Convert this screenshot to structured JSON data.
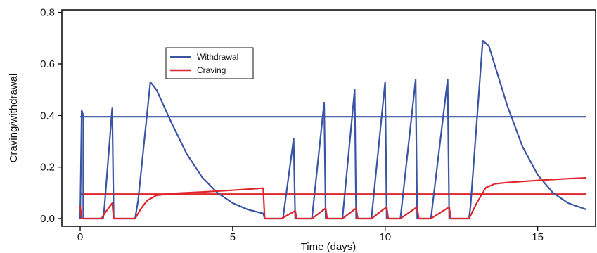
{
  "chart_data": {
    "type": "line",
    "title": "",
    "xlabel": "Time (days)",
    "ylabel": "Craving/withdrawal",
    "xlim": [
      -0.6,
      16.9
    ],
    "ylim": [
      -0.03,
      0.81
    ],
    "xticks": [
      0,
      5,
      10,
      15
    ],
    "yticks": [
      0.0,
      0.2,
      0.4,
      0.6,
      0.8
    ],
    "xtick_labels": [
      "0",
      "5",
      "10",
      "15"
    ],
    "ytick_labels": [
      "0.0",
      "0.2",
      "0.4",
      "0.6",
      "0.8"
    ],
    "grid": false,
    "legend": {
      "position": "upper-left-center"
    },
    "series": [
      {
        "name": "Withdrawal",
        "color": "#3a54a4",
        "points": [
          [
            0.0,
            0.0
          ],
          [
            0.05,
            0.42
          ],
          [
            0.1,
            0.4
          ],
          [
            0.1,
            0.0
          ],
          [
            0.75,
            0.0
          ],
          [
            0.8,
            0.05
          ],
          [
            1.05,
            0.43
          ],
          [
            1.1,
            0.0
          ],
          [
            1.8,
            0.0
          ],
          [
            1.9,
            0.07
          ],
          [
            2.3,
            0.53
          ],
          [
            2.5,
            0.5
          ],
          [
            3.0,
            0.37
          ],
          [
            3.5,
            0.25
          ],
          [
            4.0,
            0.16
          ],
          [
            4.5,
            0.1
          ],
          [
            5.0,
            0.06
          ],
          [
            5.5,
            0.035
          ],
          [
            6.0,
            0.02
          ],
          [
            6.05,
            0.0
          ],
          [
            6.65,
            0.0
          ],
          [
            7.0,
            0.31
          ],
          [
            7.05,
            0.0
          ],
          [
            7.6,
            0.0
          ],
          [
            8.0,
            0.45
          ],
          [
            8.05,
            0.0
          ],
          [
            8.6,
            0.0
          ],
          [
            9.0,
            0.5
          ],
          [
            9.05,
            0.0
          ],
          [
            9.55,
            0.0
          ],
          [
            10.0,
            0.53
          ],
          [
            10.05,
            0.0
          ],
          [
            10.5,
            0.0
          ],
          [
            11.0,
            0.54
          ],
          [
            11.05,
            0.0
          ],
          [
            11.5,
            0.0
          ],
          [
            12.05,
            0.54
          ],
          [
            12.1,
            0.0
          ],
          [
            12.75,
            0.0
          ],
          [
            12.8,
            0.05
          ],
          [
            13.2,
            0.69
          ],
          [
            13.4,
            0.67
          ],
          [
            14.0,
            0.44
          ],
          [
            14.5,
            0.28
          ],
          [
            15.0,
            0.17
          ],
          [
            15.5,
            0.1
          ],
          [
            16.0,
            0.06
          ],
          [
            16.6,
            0.035
          ]
        ]
      },
      {
        "name": "Craving",
        "color": "#e0242b",
        "points": [
          [
            0.0,
            0.05
          ],
          [
            0.05,
            0.0
          ],
          [
            0.7,
            0.0
          ],
          [
            0.8,
            0.02
          ],
          [
            1.05,
            0.06
          ],
          [
            1.1,
            0.0
          ],
          [
            1.8,
            0.0
          ],
          [
            2.0,
            0.04
          ],
          [
            2.2,
            0.07
          ],
          [
            2.5,
            0.09
          ],
          [
            3.0,
            0.097
          ],
          [
            4.0,
            0.103
          ],
          [
            5.0,
            0.11
          ],
          [
            6.0,
            0.118
          ],
          [
            6.05,
            0.0
          ],
          [
            6.6,
            0.0
          ],
          [
            7.05,
            0.03
          ],
          [
            7.1,
            0.0
          ],
          [
            7.6,
            0.0
          ],
          [
            8.05,
            0.04
          ],
          [
            8.1,
            0.0
          ],
          [
            8.6,
            0.0
          ],
          [
            9.05,
            0.04
          ],
          [
            9.1,
            0.0
          ],
          [
            9.55,
            0.0
          ],
          [
            10.05,
            0.045
          ],
          [
            10.1,
            0.0
          ],
          [
            10.5,
            0.0
          ],
          [
            11.05,
            0.045
          ],
          [
            11.1,
            0.0
          ],
          [
            11.5,
            0.0
          ],
          [
            12.1,
            0.045
          ],
          [
            12.15,
            0.0
          ],
          [
            12.75,
            0.0
          ],
          [
            13.0,
            0.06
          ],
          [
            13.3,
            0.12
          ],
          [
            13.6,
            0.135
          ],
          [
            14.0,
            0.14
          ],
          [
            15.0,
            0.148
          ],
          [
            16.0,
            0.155
          ],
          [
            16.6,
            0.158
          ]
        ]
      },
      {
        "name": "",
        "color": "#3a54a4",
        "points": [
          [
            0.0,
            0.395
          ],
          [
            16.6,
            0.395
          ]
        ]
      },
      {
        "name": "",
        "color": "#e0242b",
        "points": [
          [
            0.0,
            0.095
          ],
          [
            16.6,
            0.095
          ]
        ]
      }
    ]
  }
}
